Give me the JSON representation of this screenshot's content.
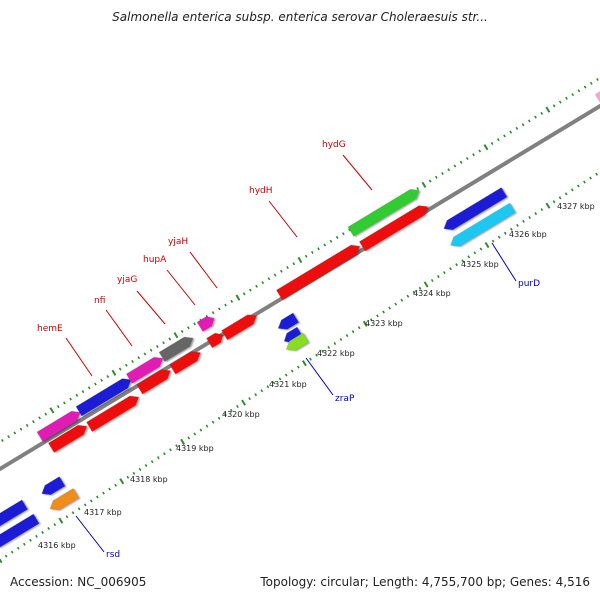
{
  "map": {
    "title": "Salmonella enterica subsp. enterica serovar Choleraesuis str...",
    "accession": "Accession: NC_006905",
    "stats": "Topology: circular; Length: 4,755,700 bp; Genes: 4,516"
  },
  "colors": {
    "backbone": "#808080",
    "ticks": "#2e8b2e",
    "label_forward": "#cc0000",
    "label_reverse": "#0000cc",
    "kbp_text": "#222222"
  },
  "scale": {
    "unit": "kbp",
    "labels": [
      "4316 kbp",
      "4317 kbp",
      "4318 kbp",
      "4319 kbp",
      "4320 kbp",
      "4321 kbp",
      "4322 kbp",
      "4323 kbp",
      "4324 kbp",
      "4325 kbp",
      "4326 kbp",
      "4327 kbp"
    ]
  },
  "gene_labels": [
    {
      "name": "hemE",
      "strand": "forward"
    },
    {
      "name": "nfi",
      "strand": "forward"
    },
    {
      "name": "yjaG",
      "strand": "forward"
    },
    {
      "name": "hupA",
      "strand": "forward"
    },
    {
      "name": "yjaH",
      "strand": "forward"
    },
    {
      "name": "hydH",
      "strand": "forward"
    },
    {
      "name": "hydG",
      "strand": "forward"
    },
    {
      "name": "rsd",
      "strand": "reverse"
    },
    {
      "name": "zraP",
      "strand": "reverse"
    },
    {
      "name": "purD",
      "strand": "reverse"
    }
  ],
  "features": [
    {
      "id": "f1",
      "color": "#e01eb4"
    },
    {
      "id": "f2",
      "color": "#1f1fd6"
    },
    {
      "id": "f3",
      "color": "#ee1111"
    },
    {
      "id": "f4",
      "color": "#ee1111"
    },
    {
      "id": "f5",
      "color": "#e01eb4"
    },
    {
      "id": "f6",
      "color": "#ee1111"
    },
    {
      "id": "f7",
      "color": "#666666"
    },
    {
      "id": "f8",
      "color": "#ee1111"
    },
    {
      "id": "f9",
      "color": "#e01eb4"
    },
    {
      "id": "f10",
      "color": "#ee1111"
    },
    {
      "id": "f11",
      "color": "#ee1111"
    },
    {
      "id": "f12",
      "color": "#ee1111"
    },
    {
      "id": "f13",
      "color": "#33cc33"
    },
    {
      "id": "f14",
      "color": "#ee1111"
    },
    {
      "id": "f15",
      "color": "#1f1fd6"
    },
    {
      "id": "f16",
      "color": "#1fc8f0"
    },
    {
      "id": "f17",
      "color": "#1f1fd6"
    },
    {
      "id": "f18",
      "color": "#1f1fd6"
    },
    {
      "id": "f19",
      "color": "#1f1fd6"
    },
    {
      "id": "f20",
      "color": "#f08c1e"
    },
    {
      "id": "f21",
      "color": "#1f1fd6"
    },
    {
      "id": "f22",
      "color": "#1f1fd6"
    },
    {
      "id": "f23",
      "color": "#88dd22"
    },
    {
      "id": "f24",
      "color": "#ff9fd6"
    }
  ]
}
